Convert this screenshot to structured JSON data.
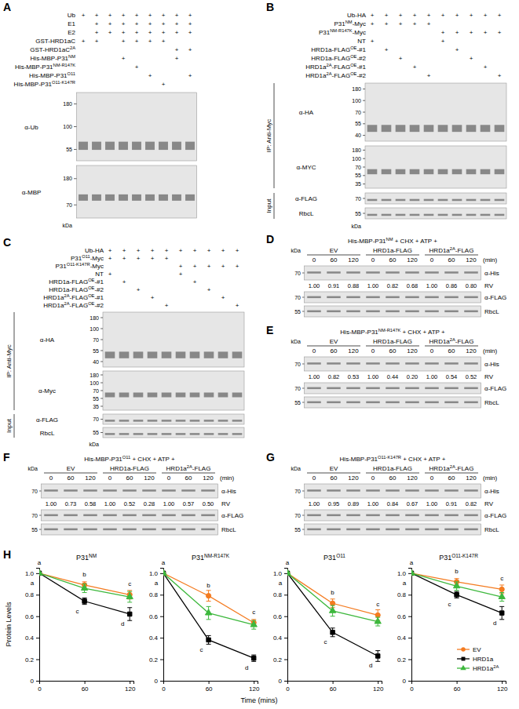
{
  "panels": [
    {
      "letter": "A",
      "rows": [
        {
          "label": "Ub",
          "signs": [
            "+",
            "+",
            "+",
            "+",
            "+",
            "+",
            "+",
            "+",
            "+"
          ]
        },
        {
          "label": "E1",
          "signs": [
            null,
            "+",
            "+",
            "+",
            "+",
            "+",
            "+",
            "+",
            "+"
          ]
        },
        {
          "label": "E2",
          "signs": [
            null,
            "+",
            "+",
            "+",
            "+",
            "+",
            "+",
            "+",
            "+"
          ]
        },
        {
          "label": "GST-HRD1aC",
          "signs": [
            "+",
            "+",
            null,
            "+",
            "+",
            "+",
            "+",
            null,
            null
          ]
        },
        {
          "label": [
            "GST-HRD1aC",
            "2A"
          ],
          "signs": [
            null,
            null,
            null,
            null,
            null,
            null,
            null,
            "+",
            "+"
          ]
        },
        {
          "label": [
            "His-MBP-P31",
            "NM"
          ],
          "signs": [
            null,
            null,
            null,
            "+",
            null,
            null,
            null,
            "+",
            null
          ]
        },
        {
          "label": [
            "His-MBP-P31",
            "NM-R147K"
          ],
          "signs": [
            null,
            null,
            null,
            null,
            "+",
            null,
            null,
            null,
            null
          ]
        },
        {
          "label": [
            "His-MBP-P31",
            "O11"
          ],
          "signs": [
            null,
            null,
            null,
            null,
            null,
            "+",
            null,
            null,
            "+"
          ]
        },
        {
          "label": [
            "His-MBP-P31",
            "O11-K147R"
          ],
          "signs": [
            null,
            null,
            null,
            null,
            null,
            null,
            "+",
            null,
            null
          ]
        }
      ],
      "blots": [
        {
          "antibody": "α-Ub",
          "markers": [
            180,
            100,
            55
          ]
        },
        {
          "antibody": "α-MBP",
          "markers": [
            180,
            70
          ]
        }
      ],
      "unit": "kDa"
    },
    {
      "letter": "B",
      "rows": [
        {
          "label": "Ub-HA",
          "signs": [
            "+",
            "+",
            "+",
            "+",
            "+",
            "+",
            "+",
            "+",
            "+",
            "+"
          ]
        },
        {
          "label": [
            "P31",
            "NM",
            "-Myc"
          ],
          "signs": [
            "+",
            "+",
            "+",
            "+",
            "+",
            null,
            null,
            null,
            null,
            null
          ]
        },
        {
          "label": [
            "P31",
            "NM-R147K",
            "-Myc"
          ],
          "signs": [
            null,
            null,
            null,
            null,
            null,
            "+",
            "+",
            "+",
            "+",
            "+"
          ]
        },
        {
          "label": "NT",
          "signs": [
            "+",
            null,
            null,
            null,
            null,
            "+",
            null,
            null,
            null,
            null
          ]
        },
        {
          "label": [
            "HRD1a-FLAG",
            "OE",
            "-#1"
          ],
          "signs": [
            null,
            "+",
            null,
            null,
            null,
            null,
            "+",
            null,
            null,
            null
          ]
        },
        {
          "label": [
            "HRD1a-FLAG",
            "OE",
            "-#2"
          ],
          "signs": [
            null,
            null,
            "+",
            null,
            null,
            null,
            null,
            "+",
            null,
            null
          ]
        },
        {
          "label": [
            "HRD1a",
            "2A",
            "-FLAG",
            "OE",
            "-#1"
          ],
          "signs": [
            null,
            null,
            null,
            "+",
            null,
            null,
            null,
            null,
            "+",
            null
          ]
        },
        {
          "label": [
            "HRD1a",
            "2A",
            "-FLAG",
            "OE",
            "-#2"
          ],
          "signs": [
            null,
            null,
            null,
            null,
            "+",
            null,
            null,
            null,
            null,
            "+"
          ]
        }
      ],
      "blots": [
        {
          "antibody": "α-HA",
          "markers": [
            180,
            100,
            70,
            55,
            40
          ]
        },
        {
          "antibody": "α-MYC",
          "markers": [
            180,
            100,
            70,
            55,
            35
          ]
        },
        {
          "antibody": "α-FLAG",
          "markers": [
            70
          ]
        },
        {
          "antibody": "RbcL",
          "markers": [
            55
          ]
        }
      ],
      "groups": [
        {
          "text": "IP: Anti-Myc",
          "blots": [
            0,
            1
          ]
        },
        {
          "text": "Input",
          "blots": [
            2,
            3
          ]
        }
      ],
      "unit": "kDa"
    },
    {
      "letter": "C",
      "rows": [
        {
          "label": "Ub-HA",
          "signs": [
            "+",
            "+",
            "+",
            "+",
            "+",
            "+",
            "+",
            "+",
            "+",
            "+"
          ]
        },
        {
          "label": [
            "P31",
            "O11",
            "-Myc"
          ],
          "signs": [
            "+",
            "+",
            "+",
            "+",
            "+",
            null,
            null,
            null,
            null,
            null
          ]
        },
        {
          "label": [
            "P31",
            "O11-K147R",
            "-Myc"
          ],
          "signs": [
            null,
            null,
            null,
            null,
            null,
            "+",
            "+",
            "+",
            "+",
            "+"
          ]
        },
        {
          "label": "NT",
          "signs": [
            "+",
            null,
            null,
            null,
            null,
            "+",
            null,
            null,
            null,
            null
          ]
        },
        {
          "label": [
            "HRD1a-FLAG",
            "OE",
            "-#1"
          ],
          "signs": [
            null,
            "+",
            null,
            null,
            null,
            null,
            "+",
            null,
            null,
            null
          ]
        },
        {
          "label": [
            "HRD1a-FLAG",
            "OE",
            "-#2"
          ],
          "signs": [
            null,
            null,
            "+",
            null,
            null,
            null,
            null,
            "+",
            null,
            null
          ]
        },
        {
          "label": [
            "HRD1a",
            "2A",
            "-FLAG",
            "OE",
            "-#1"
          ],
          "signs": [
            null,
            null,
            null,
            "+",
            null,
            null,
            null,
            null,
            "+",
            null
          ]
        },
        {
          "label": [
            "HRD1a",
            "2A",
            "-FLAG",
            "OE",
            "-#2"
          ],
          "signs": [
            null,
            null,
            null,
            null,
            "+",
            null,
            null,
            null,
            null,
            "+"
          ]
        }
      ],
      "blots": [
        {
          "antibody": "α-HA",
          "markers": [
            180,
            100,
            70,
            55,
            40
          ]
        },
        {
          "antibody": "α-Myc",
          "markers": [
            180,
            100,
            70,
            55,
            35
          ]
        },
        {
          "antibody": "α-FLAG",
          "markers": [
            70
          ]
        },
        {
          "antibody": "RbcL",
          "markers": [
            55
          ]
        }
      ],
      "groups": [
        {
          "text": "IP: Anti-Myc",
          "blots": [
            0,
            1
          ]
        },
        {
          "text": "Input",
          "blots": [
            2,
            3
          ]
        }
      ],
      "unit": "kDa"
    },
    {
      "letter": "D",
      "title": [
        "His-MBP-P31",
        "NM",
        " + CHX + ATP +"
      ],
      "groups": [
        "EV",
        "HRD1a-FLAG",
        [
          "HRD1a",
          "2A",
          "-FLAG"
        ]
      ],
      "times": [
        0,
        60,
        120
      ],
      "time_unit": "(min)",
      "unit": "kDa",
      "blots": [
        {
          "antibody": "α-His",
          "markers": [
            70
          ]
        },
        {
          "antibody": "α-FLAG",
          "markers": [
            70
          ]
        },
        {
          "antibody": "RbcL",
          "markers": [
            55
          ]
        }
      ],
      "rv_label": "RV",
      "rv": [
        "1.00",
        "0.91",
        "0.88",
        "1.00",
        "0.82",
        "0.68",
        "1.00",
        "0.86",
        "0.80"
      ]
    },
    {
      "letter": "E",
      "title": [
        "His-MBP-P31",
        "NM-R147K",
        " + CHX + ATP +"
      ],
      "groups": [
        "EV",
        "HRD1a-FLAG",
        [
          "HRD1a",
          "2A",
          "-FLAG"
        ]
      ],
      "times": [
        0,
        60,
        120
      ],
      "time_unit": "(min)",
      "unit": "kDa",
      "blots": [
        {
          "antibody": "α-His",
          "markers": [
            70
          ]
        },
        {
          "antibody": "α-FLAG",
          "markers": [
            70
          ]
        },
        {
          "antibody": "RbcL",
          "markers": [
            55
          ]
        }
      ],
      "rv_label": "RV",
      "rv": [
        "1.00",
        "0.82",
        "0.53",
        "1.00",
        "0.44",
        "0.20",
        "1.00",
        "0.54",
        "0.52"
      ]
    },
    {
      "letter": "F",
      "title": [
        "His-MBP-P31",
        "O11",
        " + CHX + ATP +"
      ],
      "groups": [
        "EV",
        "HRD1a-FLAG",
        [
          "HRD1a",
          "2A",
          "-FLAG"
        ]
      ],
      "times": [
        0,
        60,
        120
      ],
      "time_unit": "(min)",
      "unit": "kDa",
      "blots": [
        {
          "antibody": "α-His",
          "markers": [
            70
          ]
        },
        {
          "antibody": "α-FLAG",
          "markers": [
            70
          ]
        },
        {
          "antibody": "RbcL",
          "markers": [
            55
          ]
        }
      ],
      "rv_label": "RV",
      "rv": [
        "1.00",
        "0.73",
        "0.58",
        "1.00",
        "0.52",
        "0.28",
        "1.00",
        "0.57",
        "0.50"
      ]
    },
    {
      "letter": "G",
      "title": [
        "His-MBP-P31",
        "O11-K147R",
        " + CHX + ATP +"
      ],
      "groups": [
        "EV",
        "HRD1a-FLAG",
        [
          "HRD1a",
          "2A",
          "-FLAG"
        ]
      ],
      "times": [
        0,
        60,
        120
      ],
      "time_unit": "(min)",
      "unit": "kDa",
      "blots": [
        {
          "antibody": "α-His",
          "markers": [
            70
          ]
        },
        {
          "antibody": "α-FLAG",
          "markers": [
            70
          ]
        },
        {
          "antibody": "RbcL",
          "markers": [
            55
          ]
        }
      ],
      "rv_label": "RV",
      "rv": [
        "1.00",
        "0.95",
        "0.89",
        "1.00",
        "0.84",
        "0.67",
        "1.00",
        "0.91",
        "0.82"
      ]
    }
  ],
  "figure_h": {
    "letter": "H"
  },
  "chart_data": [
    {
      "type": "line",
      "title": [
        "P31",
        "NM"
      ],
      "ylabel": "Protein Levels",
      "xlabel": "Time (mins)",
      "x": [
        0,
        60,
        120
      ],
      "xlim": [
        0,
        125
      ],
      "xticks": [
        0,
        60,
        120
      ],
      "ylim": [
        0,
        1.05
      ],
      "yticks": [
        0,
        0.2,
        0.4,
        0.6,
        0.8,
        {
          "value": 1,
          "label": "1.0"
        }
      ],
      "series": [
        {
          "name": "EV",
          "color": "#f47b20",
          "marker": "circle",
          "values": [
            1,
            0.89,
            0.8
          ],
          "errors": [
            0.01,
            0.03,
            0.04
          ],
          "letters": [
            "a",
            "b",
            "c"
          ]
        },
        {
          "name": "HRD1a",
          "color": "#000000",
          "marker": "square",
          "values": [
            1,
            0.74,
            0.62
          ],
          "errors": [
            0.01,
            0.03,
            0.06
          ],
          "letters": [
            "a",
            "c",
            "d"
          ]
        },
        {
          "name": [
            "HRD1a",
            "2A"
          ],
          "color": "#3db83d",
          "marker": "triangle",
          "values": [
            1,
            0.86,
            0.78
          ],
          "errors": [
            0.01,
            0.04,
            0.05
          ]
        }
      ]
    },
    {
      "type": "line",
      "title": [
        "P31",
        "NM-R147K"
      ],
      "x": [
        0,
        60,
        120
      ],
      "xlim": [
        0,
        125
      ],
      "xticks": [
        0,
        60,
        120
      ],
      "ylim": [
        0,
        1.05
      ],
      "yticks": [
        0,
        0.2,
        0.4,
        0.6,
        0.8,
        {
          "value": 1,
          "label": "1.0"
        }
      ],
      "series": [
        {
          "name": "EV",
          "color": "#f47b20",
          "marker": "circle",
          "values": [
            1,
            0.79,
            0.54
          ],
          "errors": [
            0.01,
            0.05,
            0.03
          ],
          "letters": [
            "a",
            "b",
            "c"
          ]
        },
        {
          "name": "HRD1a",
          "color": "#000000",
          "marker": "square",
          "values": [
            1,
            0.38,
            0.21
          ],
          "errors": [
            0.01,
            0.04,
            0.03
          ],
          "letters": [
            "a",
            "c",
            "d"
          ]
        },
        {
          "name": [
            "HRD1a",
            "2A"
          ],
          "color": "#3db83d",
          "marker": "triangle",
          "values": [
            1,
            0.63,
            0.52
          ],
          "errors": [
            0.01,
            0.06,
            0.04
          ]
        }
      ]
    },
    {
      "type": "line",
      "title": [
        "P31",
        "O11"
      ],
      "x": [
        0,
        60,
        120
      ],
      "xlim": [
        0,
        125
      ],
      "xticks": [
        0,
        60,
        120
      ],
      "ylim": [
        0,
        1.05
      ],
      "yticks": [
        0,
        0.2,
        0.4,
        0.6,
        0.8,
        {
          "value": 1,
          "label": "1.0"
        }
      ],
      "series": [
        {
          "name": "EV",
          "color": "#f47b20",
          "marker": "circle",
          "values": [
            1,
            0.72,
            0.61
          ],
          "errors": [
            0.01,
            0.04,
            0.05
          ],
          "letters": [
            "a",
            "b",
            "c"
          ]
        },
        {
          "name": "HRD1a",
          "color": "#000000",
          "marker": "square",
          "values": [
            1,
            0.45,
            0.23
          ],
          "errors": [
            0.01,
            0.04,
            0.05
          ],
          "letters": [
            "a",
            "c",
            "d"
          ]
        },
        {
          "name": [
            "HRD1a",
            "2A"
          ],
          "color": "#3db83d",
          "marker": "triangle",
          "values": [
            1,
            0.65,
            0.55
          ],
          "errors": [
            0.01,
            0.05,
            0.04
          ]
        }
      ]
    },
    {
      "type": "line",
      "title": [
        "P31",
        "O11-K147R"
      ],
      "legend": "lower right",
      "x": [
        0,
        60,
        120
      ],
      "xlim": [
        0,
        125
      ],
      "xticks": [
        0,
        60,
        120
      ],
      "ylim": [
        0,
        1.05
      ],
      "yticks": [
        0,
        0.2,
        0.4,
        0.6,
        0.8,
        {
          "value": 1,
          "label": "1.0"
        }
      ],
      "series": [
        {
          "name": "EV",
          "color": "#f47b20",
          "marker": "circle",
          "values": [
            1,
            0.92,
            0.85
          ],
          "errors": [
            0.01,
            0.03,
            0.04
          ],
          "letters": [
            "a",
            "b",
            "c"
          ]
        },
        {
          "name": "HRD1a",
          "color": "#000000",
          "marker": "square",
          "values": [
            1,
            0.8,
            0.63
          ],
          "errors": [
            0.01,
            0.03,
            0.06
          ],
          "letters": [
            "a",
            "c",
            "d"
          ]
        },
        {
          "name": [
            "HRD1a",
            "2A"
          ],
          "color": "#3db83d",
          "marker": "triangle",
          "values": [
            1,
            0.88,
            0.78
          ],
          "errors": [
            0.01,
            0.04,
            0.04
          ]
        }
      ]
    }
  ]
}
